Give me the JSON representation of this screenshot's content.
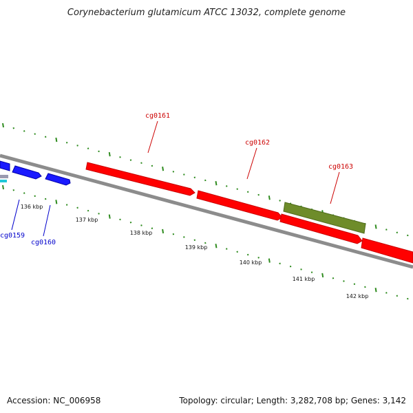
{
  "title": "Corynebacterium glutamicum ATCC 13032, complete genome",
  "footer": {
    "accession": "Accession: NC_006958",
    "summary": "Topology: circular; Length: 3,282,708 bp; Genes: 3,142"
  },
  "colors": {
    "backbone": "#8c8c8c",
    "forward_gene": "#ff0000",
    "forward_gene_dark": "#c80000",
    "reverse_gene": "#1a1aff",
    "reverse_gene_dark": "#0000a8",
    "rna_gene": "#6e8c2a",
    "rna_gene_dark": "#4e6a1a",
    "tick": "#2e8b1e",
    "forward_label": "#cc0000",
    "reverse_label": "#0000cc"
  },
  "genes": [
    {
      "name": "cg0159",
      "strand": "reverse",
      "type": "cds",
      "labeled": true
    },
    {
      "name": "cg0160",
      "strand": "reverse",
      "type": "cds",
      "labeled": true
    },
    {
      "name": "cg0161",
      "strand": "forward",
      "type": "cds",
      "labeled": true
    },
    {
      "name": "cg0162",
      "strand": "forward",
      "type": "cds",
      "labeled": true
    },
    {
      "name": "cg0163",
      "strand": "forward",
      "type": "rna",
      "labeled": true
    }
  ],
  "ticks": {
    "labels": [
      "136 kbp",
      "137 kbp",
      "138 kbp",
      "139 kbp",
      "140 kbp",
      "141 kbp",
      "142 kbp"
    ]
  }
}
